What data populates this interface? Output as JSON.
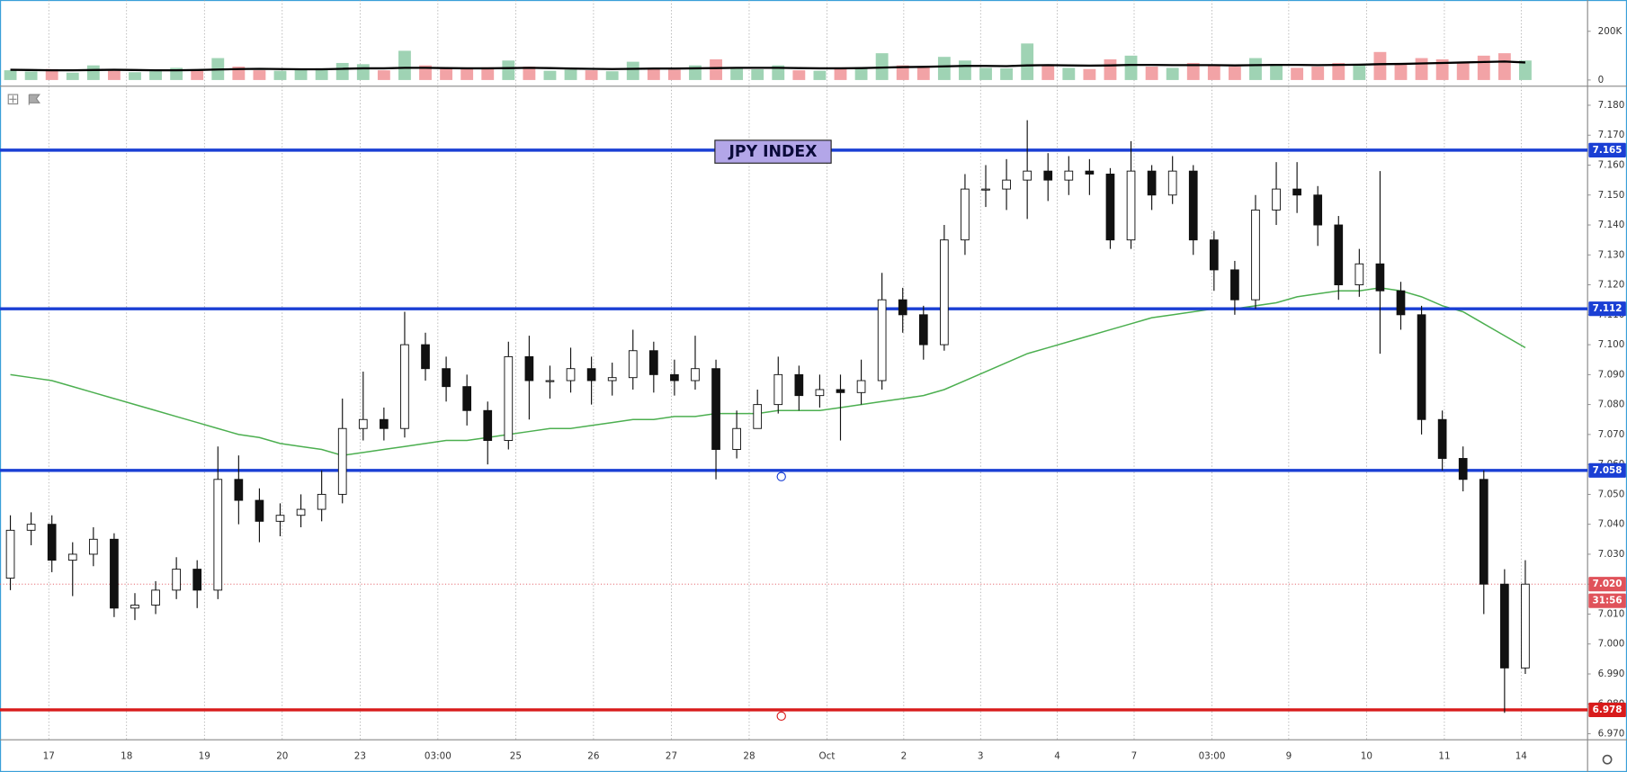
{
  "chart_data": {
    "type": "candlestick",
    "title": "JPY INDEX",
    "open": [
      7.022,
      7.038,
      7.04,
      7.028,
      7.03,
      7.035,
      7.012,
      7.013,
      7.018,
      7.025,
      7.018,
      7.055,
      7.048,
      7.041,
      7.043,
      7.045,
      7.05,
      7.072,
      7.075,
      7.072,
      7.1,
      7.092,
      7.086,
      7.078,
      7.068,
      7.096,
      7.088,
      7.088,
      7.092,
      7.088,
      7.089,
      7.098,
      7.09,
      7.088,
      7.092,
      7.065,
      7.072,
      7.08,
      7.09,
      7.083,
      7.085,
      7.084,
      7.088,
      7.115,
      7.11,
      7.1,
      7.135,
      7.152,
      7.152,
      7.155,
      7.158,
      7.155,
      7.158,
      7.157,
      7.135,
      7.158,
      7.15,
      7.158,
      7.135,
      7.125,
      7.115,
      7.145,
      7.152,
      7.15,
      7.14,
      7.12,
      7.127,
      7.118,
      7.11,
      7.075,
      7.062,
      7.055,
      7.02,
      6.992
    ],
    "high": [
      7.043,
      7.044,
      7.043,
      7.034,
      7.039,
      7.037,
      7.017,
      7.021,
      7.029,
      7.028,
      7.066,
      7.063,
      7.052,
      7.047,
      7.05,
      7.058,
      7.082,
      7.091,
      7.079,
      7.111,
      7.104,
      7.096,
      7.09,
      7.081,
      7.101,
      7.103,
      7.093,
      7.099,
      7.096,
      7.094,
      7.105,
      7.101,
      7.095,
      7.103,
      7.095,
      7.078,
      7.085,
      7.096,
      7.093,
      7.09,
      7.09,
      7.095,
      7.124,
      7.119,
      7.113,
      7.14,
      7.157,
      7.16,
      7.162,
      7.175,
      7.164,
      7.163,
      7.162,
      7.159,
      7.168,
      7.16,
      7.163,
      7.16,
      7.138,
      7.128,
      7.15,
      7.161,
      7.161,
      7.153,
      7.143,
      7.132,
      7.158,
      7.121,
      7.113,
      7.078,
      7.066,
      7.058,
      7.025,
      7.028
    ],
    "low": [
      7.018,
      7.033,
      7.024,
      7.016,
      7.026,
      7.009,
      7.008,
      7.01,
      7.015,
      7.012,
      7.015,
      7.04,
      7.034,
      7.036,
      7.039,
      7.041,
      7.047,
      7.068,
      7.068,
      7.069,
      7.088,
      7.081,
      7.073,
      7.06,
      7.065,
      7.075,
      7.082,
      7.084,
      7.08,
      7.083,
      7.085,
      7.084,
      7.083,
      7.085,
      7.055,
      7.062,
      7.074,
      7.077,
      7.078,
      7.079,
      7.068,
      7.08,
      7.085,
      7.104,
      7.095,
      7.098,
      7.13,
      7.146,
      7.145,
      7.142,
      7.148,
      7.15,
      7.15,
      7.132,
      7.132,
      7.145,
      7.147,
      7.13,
      7.118,
      7.11,
      7.112,
      7.14,
      7.144,
      7.133,
      7.115,
      7.116,
      7.097,
      7.105,
      7.07,
      7.058,
      7.051,
      7.01,
      6.977,
      6.99
    ],
    "close": [
      7.038,
      7.04,
      7.028,
      7.03,
      7.035,
      7.012,
      7.013,
      7.018,
      7.025,
      7.018,
      7.055,
      7.048,
      7.041,
      7.043,
      7.045,
      7.05,
      7.072,
      7.075,
      7.072,
      7.1,
      7.092,
      7.086,
      7.078,
      7.068,
      7.096,
      7.088,
      7.088,
      7.092,
      7.088,
      7.089,
      7.098,
      7.09,
      7.088,
      7.092,
      7.065,
      7.072,
      7.08,
      7.09,
      7.083,
      7.085,
      7.084,
      7.088,
      7.115,
      7.11,
      7.1,
      7.135,
      7.152,
      7.152,
      7.155,
      7.158,
      7.155,
      7.158,
      7.157,
      7.135,
      7.158,
      7.15,
      7.158,
      7.135,
      7.125,
      7.115,
      7.145,
      7.152,
      7.15,
      7.14,
      7.12,
      7.127,
      7.118,
      7.11,
      7.075,
      7.062,
      7.055,
      7.02,
      6.992,
      7.02
    ],
    "up_color": "#ffffff",
    "down_color": "#111111",
    "ma": {
      "color": "#4caf50",
      "values": [
        7.09,
        7.089,
        7.088,
        7.086,
        7.084,
        7.082,
        7.08,
        7.078,
        7.076,
        7.074,
        7.072,
        7.07,
        7.069,
        7.067,
        7.066,
        7.065,
        7.063,
        7.064,
        7.065,
        7.066,
        7.067,
        7.068,
        7.068,
        7.069,
        7.07,
        7.071,
        7.072,
        7.072,
        7.073,
        7.074,
        7.075,
        7.075,
        7.076,
        7.076,
        7.077,
        7.077,
        7.077,
        7.078,
        7.078,
        7.078,
        7.079,
        7.08,
        7.081,
        7.082,
        7.083,
        7.085,
        7.088,
        7.091,
        7.094,
        7.097,
        7.099,
        7.101,
        7.103,
        7.105,
        7.107,
        7.109,
        7.11,
        7.111,
        7.112,
        7.112,
        7.113,
        7.114,
        7.116,
        7.117,
        7.118,
        7.118,
        7.119,
        7.118,
        7.116,
        7.113,
        7.111,
        7.107,
        7.103,
        7.099
      ]
    },
    "xlim": [
      0,
      76.5
    ],
    "xticks": [
      {
        "value": 2.35,
        "label": "17"
      },
      {
        "value": 6.1,
        "label": "18"
      },
      {
        "value": 9.85,
        "label": "19"
      },
      {
        "value": 13.6,
        "label": "20"
      },
      {
        "value": 17.35,
        "label": "23"
      },
      {
        "value": 21.1,
        "label": "03:00"
      },
      {
        "value": 24.85,
        "label": "25"
      },
      {
        "value": 28.6,
        "label": "26"
      },
      {
        "value": 32.35,
        "label": "27"
      },
      {
        "value": 36.1,
        "label": "28"
      },
      {
        "value": 39.85,
        "label": "Oct"
      },
      {
        "value": 43.55,
        "label": "2"
      },
      {
        "value": 47.25,
        "label": "3"
      },
      {
        "value": 50.95,
        "label": "4"
      },
      {
        "value": 54.65,
        "label": "7"
      },
      {
        "value": 58.4,
        "label": "03:00"
      },
      {
        "value": 62.1,
        "label": "9"
      },
      {
        "value": 65.85,
        "label": "10"
      },
      {
        "value": 69.6,
        "label": "11"
      },
      {
        "value": 73.3,
        "label": "14"
      }
    ],
    "ylim": [
      6.968,
      7.186
    ],
    "yticks": [
      {
        "value": 7.18,
        "label": "7.180"
      },
      {
        "value": 7.17,
        "label": "7.170"
      },
      {
        "value": 7.16,
        "label": "7.160"
      },
      {
        "value": 7.15,
        "label": "7.150"
      },
      {
        "value": 7.14,
        "label": "7.140"
      },
      {
        "value": 7.13,
        "label": "7.130"
      },
      {
        "value": 7.12,
        "label": "7.120"
      },
      {
        "value": 7.11,
        "label": "7.110"
      },
      {
        "value": 7.1,
        "label": "7.100"
      },
      {
        "value": 7.09,
        "label": "7.090"
      },
      {
        "value": 7.08,
        "label": "7.080"
      },
      {
        "value": 7.07,
        "label": "7.070"
      },
      {
        "value": 7.06,
        "label": "7.060"
      },
      {
        "value": 7.05,
        "label": "7.050"
      },
      {
        "value": 7.04,
        "label": "7.040"
      },
      {
        "value": 7.03,
        "label": "7.030"
      },
      {
        "value": 7.02,
        "label": "7.020"
      },
      {
        "value": 7.01,
        "label": "7.010"
      },
      {
        "value": 7.0,
        "label": "7.000"
      },
      {
        "value": 6.99,
        "label": "6.990"
      },
      {
        "value": 6.98,
        "label": "6.980"
      },
      {
        "value": 6.97,
        "label": "6.970"
      }
    ],
    "grid": true,
    "levels": [
      {
        "value": 7.165,
        "color": "#1a3fd4"
      },
      {
        "value": 7.112,
        "color": "#1a3fd4"
      },
      {
        "value": 7.058,
        "color": "#1a3fd4"
      },
      {
        "value": 6.978,
        "color": "#d81b1b"
      }
    ],
    "last_price": {
      "value": 7.02,
      "label": "7.020",
      "countdown": "31:56",
      "color": "#e0525a"
    },
    "volume": {
      "values": [
        40000,
        35000,
        45000,
        30000,
        60000,
        38000,
        32000,
        36000,
        50000,
        42000,
        90000,
        55000,
        40000,
        38000,
        42000,
        48000,
        70000,
        65000,
        40000,
        120000,
        60000,
        48000,
        45000,
        52000,
        80000,
        55000,
        38000,
        42000,
        40000,
        36000,
        75000,
        50000,
        42000,
        60000,
        85000,
        50000,
        44000,
        60000,
        40000,
        38000,
        45000,
        52000,
        110000,
        60000,
        55000,
        95000,
        80000,
        50000,
        48000,
        150000,
        60000,
        50000,
        45000,
        85000,
        100000,
        55000,
        50000,
        70000,
        60000,
        55000,
        90000,
        65000,
        50000,
        55000,
        70000,
        60000,
        115000,
        70000,
        90000,
        85000,
        70000,
        100000,
        110000,
        80000
      ],
      "ma": [
        42000,
        41000,
        40000,
        40000,
        41000,
        42000,
        41000,
        40000,
        40000,
        41000,
        43000,
        45000,
        46000,
        45000,
        44000,
        44000,
        46000,
        48000,
        48000,
        50000,
        50000,
        49000,
        48000,
        48000,
        49000,
        50000,
        49000,
        47000,
        46000,
        45000,
        46000,
        47000,
        47000,
        48000,
        49000,
        50000,
        50000,
        50000,
        49000,
        48000,
        48000,
        49000,
        51000,
        53000,
        54000,
        56000,
        58000,
        58000,
        57000,
        60000,
        61000,
        60000,
        59000,
        60000,
        62000,
        62000,
        61000,
        61000,
        61000,
        60000,
        61000,
        62000,
        62000,
        61000,
        62000,
        63000,
        65000,
        66000,
        68000,
        70000,
        72000,
        74000,
        76000,
        72000
      ],
      "ylim": [
        0,
        320000
      ],
      "yticks": [
        {
          "value": 200000,
          "label": "200K"
        },
        0
      ],
      "up_color": "#9fd3b4",
      "down_color": "#f2a3a6",
      "ma_color": "#000000"
    }
  }
}
